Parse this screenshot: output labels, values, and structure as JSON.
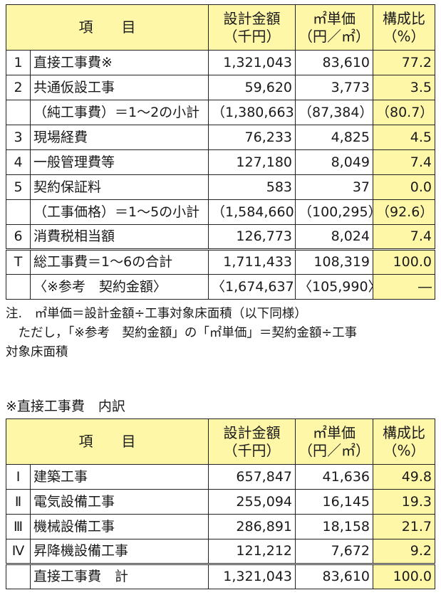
{
  "main_table": {
    "headers": {
      "item": "項　　目",
      "amount_line1": "設計金額",
      "amount_line2": "（千円）",
      "unit_line1": "㎡単価",
      "unit_line2": "（円／㎡）",
      "ratio_line1": "構成比",
      "ratio_line2": "（%）"
    },
    "rows": [
      {
        "no": "1",
        "label": "直接工事費※",
        "amount": "1,321,043",
        "unit": "83,610",
        "ratio": "77.2"
      },
      {
        "no": "2",
        "label": "共通仮設工事",
        "amount": "59,620",
        "unit": "3,773",
        "ratio": "3.5"
      },
      {
        "no": "",
        "label": "（純工事費）＝1～2の小計",
        "amount": "（1,380,663）",
        "unit": "（87,384）",
        "ratio": "（80.7）"
      },
      {
        "no": "3",
        "label": "現場経費",
        "amount": "76,233",
        "unit": "4,825",
        "ratio": "4.5"
      },
      {
        "no": "4",
        "label": "一般管理費等",
        "amount": "127,180",
        "unit": "8,049",
        "ratio": "7.4"
      },
      {
        "no": "5",
        "label": "契約保証料",
        "amount": "583",
        "unit": "37",
        "ratio": "0.0"
      },
      {
        "no": "",
        "label": "（工事価格）＝1～5の小計",
        "amount": "（1,584,660）",
        "unit": "（100,295）",
        "ratio": "（92.6）"
      },
      {
        "no": "6",
        "label": "消費税相当額",
        "amount": "126,773",
        "unit": "8,024",
        "ratio": "7.4"
      },
      {
        "no": "T",
        "label": "総工事費＝1～6の合計",
        "amount": "1,711,433",
        "unit": "108,319",
        "ratio": "100.0"
      },
      {
        "no": "",
        "label": "〈※参考　契約金額〉",
        "amount": "〈1,674,637〉",
        "unit": "〈105,990〉",
        "ratio": "―"
      }
    ]
  },
  "notes": {
    "line1": "注.　㎡単価＝設計金額÷工事対象床面積（以下同様）",
    "line2": "　ただし，「※参考　契約金額」の「㎡単価」＝契約金額÷工事",
    "line3": "対象床面積"
  },
  "breakdown_title": "※直接工事費　内訳",
  "breakdown_table": {
    "headers": {
      "item": "項　　目",
      "amount_line1": "設計金額",
      "amount_line2": "（千円）",
      "unit_line1": "㎡単価",
      "unit_line2": "（円／㎡）",
      "ratio_line1": "構成比",
      "ratio_line2": "（%）"
    },
    "rows": [
      {
        "no": "Ⅰ",
        "label": "建築工事",
        "amount": "657,847",
        "unit": "41,636",
        "ratio": "49.8"
      },
      {
        "no": "Ⅱ",
        "label": "電気設備工事",
        "amount": "255,094",
        "unit": "16,145",
        "ratio": "19.3"
      },
      {
        "no": "Ⅲ",
        "label": "機械設備工事",
        "amount": "286,891",
        "unit": "18,158",
        "ratio": "21.7"
      },
      {
        "no": "Ⅳ",
        "label": "昇降機設備工事",
        "amount": "121,212",
        "unit": "7,672",
        "ratio": "9.2"
      },
      {
        "no": "",
        "label": "直接工事費　計",
        "amount": "1,321,043",
        "unit": "83,610",
        "ratio": "100.0"
      }
    ]
  },
  "colors": {
    "header_bg": "#fff7a8",
    "border": "#222222"
  }
}
